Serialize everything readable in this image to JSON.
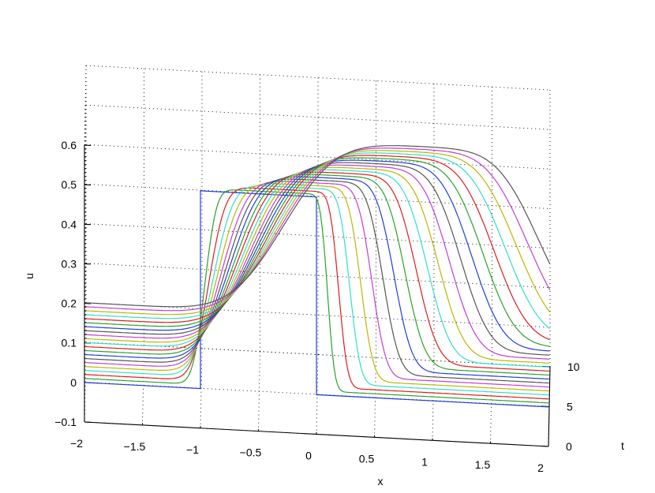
{
  "chart_data": {
    "type": "line",
    "projection": "3d",
    "title": "",
    "xlabel": "x",
    "ylabel": "t",
    "zlabel": "u",
    "xlim": [
      -2,
      2
    ],
    "ylim": [
      0,
      10
    ],
    "zlim": [
      -0.1,
      0.6
    ],
    "grid": true,
    "x_ticks": [
      "−2",
      "−1.5",
      "−1",
      "−0.5",
      "0",
      "0.5",
      "1",
      "1.5",
      "2"
    ],
    "y_ticks": [
      "0",
      "5",
      "10"
    ],
    "z_ticks": [
      "−0.1",
      "0",
      "0.1",
      "0.2",
      "0.3",
      "0.4",
      "0.5",
      "0.6"
    ],
    "initial_condition": {
      "type": "box",
      "x_left": -1,
      "x_right": 0,
      "height": 0.5,
      "background": 0
    },
    "series_colors": [
      "#1f3fd8",
      "#2aa12a",
      "#e01b1b",
      "#2fe0c6",
      "#b8b800",
      "#c43cd8",
      "#555555"
    ],
    "series": [
      {
        "t": 0.0
      },
      {
        "t": 0.5
      },
      {
        "t": 1.0
      },
      {
        "t": 1.5
      },
      {
        "t": 2.0
      },
      {
        "t": 2.5
      },
      {
        "t": 3.0
      },
      {
        "t": 3.5
      },
      {
        "t": 4.0
      },
      {
        "t": 4.5
      },
      {
        "t": 5.0
      },
      {
        "t": 5.5
      },
      {
        "t": 6.0
      },
      {
        "t": 6.5
      },
      {
        "t": 7.0
      },
      {
        "t": 7.5
      },
      {
        "t": 8.0
      },
      {
        "t": 8.5
      },
      {
        "t": 9.0
      },
      {
        "t": 9.5
      },
      {
        "t": 10.0
      }
    ]
  }
}
